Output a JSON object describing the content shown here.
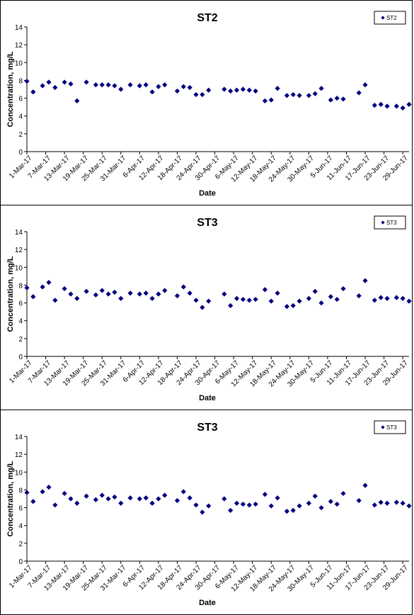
{
  "colors": {
    "marker": "#000080",
    "axis": "#000000",
    "background": "#ffffff"
  },
  "chart_data": [
    {
      "type": "scatter",
      "title": "ST2",
      "xlabel": "Date",
      "ylabel": "Concentration, mg/L",
      "xlim": [
        "1-Mar-17",
        "1-Jul-17"
      ],
      "ylim": [
        0,
        14
      ],
      "yticks": [
        0,
        2,
        4,
        6,
        8,
        10,
        12,
        14
      ],
      "xticks": [
        "1-Mar-17",
        "7-Mar-17",
        "13-Mar-17",
        "19-Mar-17",
        "25-Mar-17",
        "31-Mar-17",
        "6-Apr-17",
        "12-Apr-17",
        "18-Apr-17",
        "24-Apr-17",
        "30-Apr-17",
        "6-May-17",
        "12-May-17",
        "18-May-17",
        "24-May-17",
        "30-May-17",
        "5-Jun-17",
        "11-Jun-17",
        "17-Jun-17",
        "23-Jun-17",
        "29-Jun-17"
      ],
      "legend": "top-right",
      "grid": false,
      "series": [
        {
          "name": "ST2",
          "marker": "diamond",
          "x": [
            "1-Mar-17",
            "3-Mar-17",
            "6-Mar-17",
            "8-Mar-17",
            "10-Mar-17",
            "13-Mar-17",
            "15-Mar-17",
            "17-Mar-17",
            "20-Mar-17",
            "23-Mar-17",
            "25-Mar-17",
            "27-Mar-17",
            "29-Mar-17",
            "31-Mar-17",
            "3-Apr-17",
            "6-Apr-17",
            "8-Apr-17",
            "10-Apr-17",
            "12-Apr-17",
            "14-Apr-17",
            "18-Apr-17",
            "20-Apr-17",
            "22-Apr-17",
            "24-Apr-17",
            "26-Apr-17",
            "28-Apr-17",
            "3-May-17",
            "5-May-17",
            "7-May-17",
            "9-May-17",
            "11-May-17",
            "13-May-17",
            "16-May-17",
            "18-May-17",
            "20-May-17",
            "23-May-17",
            "25-May-17",
            "27-May-17",
            "30-May-17",
            "1-Jun-17",
            "3-Jun-17",
            "6-Jun-17",
            "8-Jun-17",
            "10-Jun-17",
            "15-Jun-17",
            "17-Jun-17",
            "20-Jun-17",
            "22-Jun-17",
            "24-Jun-17",
            "27-Jun-17",
            "29-Jun-17",
            "1-Jul-17"
          ],
          "y": [
            7.9,
            6.7,
            7.4,
            7.8,
            7.2,
            7.8,
            7.6,
            5.7,
            7.8,
            7.5,
            7.5,
            7.5,
            7.4,
            7.0,
            7.5,
            7.4,
            7.5,
            6.7,
            7.3,
            7.5,
            6.8,
            7.3,
            7.2,
            6.4,
            6.4,
            6.9,
            7.0,
            6.8,
            6.9,
            7.0,
            6.9,
            6.8,
            5.7,
            5.8,
            7.1,
            6.3,
            6.4,
            6.3,
            6.3,
            6.5,
            7.1,
            5.8,
            6.0,
            5.9,
            6.6,
            7.5,
            5.2,
            5.3,
            5.1,
            5.1,
            4.9,
            5.3
          ]
        }
      ]
    },
    {
      "type": "scatter",
      "title": "ST3",
      "xlabel": "Date",
      "ylabel": "Concentration, mg/L",
      "xlim": [
        "1-Mar-17",
        "1-Jul-17"
      ],
      "ylim": [
        0,
        14
      ],
      "yticks": [
        0,
        2,
        4,
        6,
        8,
        10,
        12,
        14
      ],
      "xticks": [
        "1-Mar-17",
        "7-Mar-17",
        "13-Mar-17",
        "19-Mar-17",
        "25-Mar-17",
        "31-Mar-17",
        "6-Apr-17",
        "12-Apr-17",
        "18-Apr-17",
        "24-Apr-17",
        "30-Apr-17",
        "6-May-17",
        "12-May-17",
        "18-May-17",
        "24-May-17",
        "30-May-17",
        "5-Jun-17",
        "11-Jun-17",
        "17-Jun-17",
        "23-Jun-17",
        "29-Jun-17"
      ],
      "legend": "top-right",
      "grid": false,
      "series": [
        {
          "name": "ST3",
          "marker": "diamond",
          "x": [
            "1-Mar-17",
            "3-Mar-17",
            "6-Mar-17",
            "8-Mar-17",
            "10-Mar-17",
            "13-Mar-17",
            "15-Mar-17",
            "17-Mar-17",
            "20-Mar-17",
            "23-Mar-17",
            "25-Mar-17",
            "27-Mar-17",
            "29-Mar-17",
            "31-Mar-17",
            "3-Apr-17",
            "6-Apr-17",
            "8-Apr-17",
            "10-Apr-17",
            "12-Apr-17",
            "14-Apr-17",
            "18-Apr-17",
            "20-Apr-17",
            "22-Apr-17",
            "24-Apr-17",
            "26-Apr-17",
            "28-Apr-17",
            "3-May-17",
            "5-May-17",
            "7-May-17",
            "9-May-17",
            "11-May-17",
            "13-May-17",
            "16-May-17",
            "18-May-17",
            "20-May-17",
            "23-May-17",
            "25-May-17",
            "27-May-17",
            "30-May-17",
            "1-Jun-17",
            "3-Jun-17",
            "6-Jun-17",
            "8-Jun-17",
            "10-Jun-17",
            "15-Jun-17",
            "17-Jun-17",
            "20-Jun-17",
            "22-Jun-17",
            "24-Jun-17",
            "27-Jun-17",
            "29-Jun-17",
            "1-Jul-17"
          ],
          "y": [
            7.7,
            6.7,
            7.8,
            8.3,
            6.3,
            7.6,
            7.0,
            6.5,
            7.3,
            6.9,
            7.4,
            7.0,
            7.2,
            6.5,
            7.1,
            7.0,
            7.1,
            6.5,
            7.0,
            7.4,
            6.8,
            7.8,
            7.1,
            6.3,
            5.5,
            6.2,
            7.0,
            5.7,
            6.5,
            6.4,
            6.3,
            6.4,
            7.5,
            6.2,
            7.1,
            5.6,
            5.7,
            6.2,
            6.5,
            7.3,
            6.0,
            6.7,
            6.4,
            7.6,
            6.8,
            8.5,
            6.3,
            6.6,
            6.5,
            6.6,
            6.5,
            6.2
          ]
        }
      ]
    },
    {
      "type": "scatter",
      "title": "ST3",
      "xlabel": "Date",
      "ylabel": "Concentration, mg/L",
      "xlim": [
        "1-Mar-17",
        "1-Jul-17"
      ],
      "ylim": [
        0,
        14
      ],
      "yticks": [
        0,
        2,
        4,
        6,
        8,
        10,
        12,
        14
      ],
      "xticks": [
        "1-Mar-17",
        "7-Mar-17",
        "13-Mar-17",
        "19-Mar-17",
        "25-Mar-17",
        "31-Mar-17",
        "6-Apr-17",
        "12-Apr-17",
        "18-Apr-17",
        "24-Apr-17",
        "30-Apr-17",
        "6-May-17",
        "12-May-17",
        "18-May-17",
        "24-May-17",
        "30-May-17",
        "5-Jun-17",
        "11-Jun-17",
        "17-Jun-17",
        "23-Jun-17",
        "29-Jun-17"
      ],
      "legend": "top-right",
      "grid": false,
      "series": [
        {
          "name": "ST3",
          "marker": "diamond",
          "x": [
            "1-Mar-17",
            "3-Mar-17",
            "6-Mar-17",
            "8-Mar-17",
            "10-Mar-17",
            "13-Mar-17",
            "15-Mar-17",
            "17-Mar-17",
            "20-Mar-17",
            "23-Mar-17",
            "25-Mar-17",
            "27-Mar-17",
            "29-Mar-17",
            "31-Mar-17",
            "3-Apr-17",
            "6-Apr-17",
            "8-Apr-17",
            "10-Apr-17",
            "12-Apr-17",
            "14-Apr-17",
            "18-Apr-17",
            "20-Apr-17",
            "22-Apr-17",
            "24-Apr-17",
            "26-Apr-17",
            "28-Apr-17",
            "3-May-17",
            "5-May-17",
            "7-May-17",
            "9-May-17",
            "11-May-17",
            "13-May-17",
            "16-May-17",
            "18-May-17",
            "20-May-17",
            "23-May-17",
            "25-May-17",
            "27-May-17",
            "30-May-17",
            "1-Jun-17",
            "3-Jun-17",
            "6-Jun-17",
            "8-Jun-17",
            "10-Jun-17",
            "15-Jun-17",
            "17-Jun-17",
            "20-Jun-17",
            "22-Jun-17",
            "24-Jun-17",
            "27-Jun-17",
            "29-Jun-17",
            "1-Jul-17"
          ],
          "y": [
            7.7,
            6.7,
            7.8,
            8.3,
            6.3,
            7.6,
            7.0,
            6.5,
            7.3,
            6.9,
            7.4,
            7.0,
            7.2,
            6.5,
            7.1,
            7.0,
            7.1,
            6.5,
            7.0,
            7.4,
            6.8,
            7.8,
            7.1,
            6.3,
            5.5,
            6.2,
            7.0,
            5.7,
            6.5,
            6.4,
            6.3,
            6.4,
            7.5,
            6.2,
            7.1,
            5.6,
            5.7,
            6.2,
            6.5,
            7.3,
            6.0,
            6.7,
            6.4,
            7.6,
            6.8,
            8.5,
            6.3,
            6.6,
            6.5,
            6.6,
            6.5,
            6.2
          ]
        }
      ]
    }
  ]
}
